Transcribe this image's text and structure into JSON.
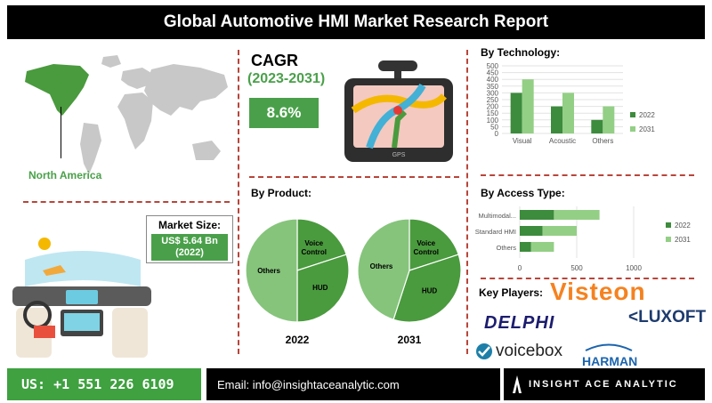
{
  "title": "Global Automotive HMI Market Research Report",
  "region": {
    "label": "North America"
  },
  "market_size": {
    "label": "Market Size:",
    "value": "US$ 5.64 Bn",
    "year": "(2022)"
  },
  "cagr": {
    "title": "CAGR",
    "range": "(2023-2031)",
    "value": "8.6%"
  },
  "gps_label": "GPS",
  "sections": {
    "technology": "By Technology:",
    "product": "By Product:",
    "access": "By Access Type:",
    "players": "Key Players:"
  },
  "colors": {
    "dark_green": "#3d8b3d",
    "light_green": "#93cf85",
    "pie_dark": "#4a9a3e",
    "pie_light": "#86c47c",
    "accent": "#4aa04a",
    "divider": "#b8453a"
  },
  "chart_data": [
    {
      "type": "bar",
      "title": "By Technology:",
      "categories": [
        "Visual",
        "Acoustic",
        "Others"
      ],
      "series": [
        {
          "name": "2022",
          "values": [
            300,
            200,
            100
          ]
        },
        {
          "name": "2031",
          "values": [
            400,
            300,
            200
          ]
        }
      ],
      "yticks": [
        "0",
        "50",
        "100",
        "150",
        "200",
        "250",
        "300",
        "350",
        "400",
        "450",
        "500"
      ],
      "ylim": [
        0,
        500
      ],
      "legend": "right"
    },
    {
      "type": "bar",
      "orientation": "horizontal",
      "stacked": true,
      "title": "By Access Type:",
      "categories": [
        "Multimodal...",
        "Standard HMI",
        "Others"
      ],
      "series": [
        {
          "name": "2022",
          "values": [
            300,
            200,
            100
          ]
        },
        {
          "name": "2031",
          "values": [
            400,
            300,
            200
          ]
        }
      ],
      "xticks": [
        "0",
        "500",
        "1000"
      ],
      "xlim": [
        0,
        1000
      ],
      "legend": "right"
    },
    {
      "type": "pie",
      "title": "2022",
      "labels": [
        "Voice Control",
        "HUD",
        "Others"
      ],
      "values": [
        20,
        30,
        50
      ]
    },
    {
      "type": "pie",
      "title": "2031",
      "labels": [
        "Voice Control",
        "HUD",
        "Others"
      ],
      "values": [
        20,
        35,
        45
      ]
    }
  ],
  "players": [
    "Visteon",
    "DELPHI",
    "LUXOFT",
    "voicebox",
    "HARMAN"
  ],
  "footer": {
    "phone": "US: +1 551 226 6109",
    "email": "Email: info@insightaceanalytic.com",
    "brand": "INSIGHT ACE ANALYTIC"
  }
}
